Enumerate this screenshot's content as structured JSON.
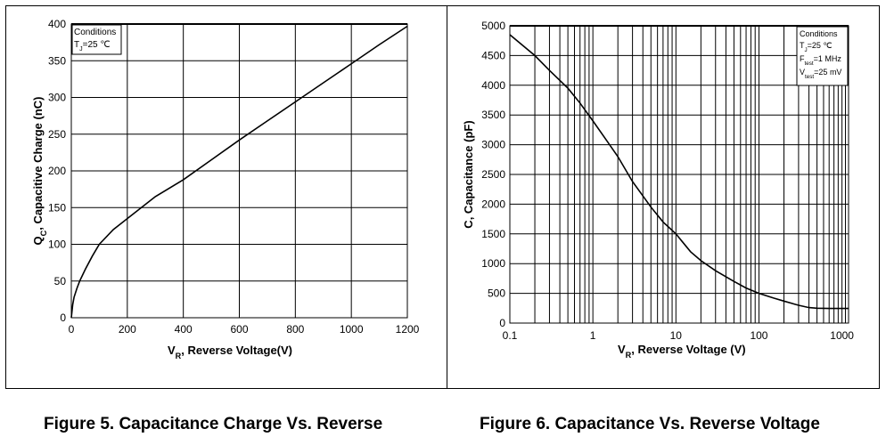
{
  "chart_data": [
    {
      "type": "line",
      "ylabel_main": "Q",
      "ylabel_sub": "C",
      "ylabel_rest": ", Capacitive Charge (nC)",
      "xlabel_main": "V",
      "xlabel_sub": "R",
      "xlabel_rest": ",  Reverse Voltage(V)",
      "x_ticks": [
        "0",
        "200",
        "400",
        "600",
        "800",
        "1000",
        "1200"
      ],
      "y_ticks": [
        "0",
        "50",
        "100",
        "150",
        "200",
        "250",
        "300",
        "350",
        "400"
      ],
      "xlim": [
        0,
        1200
      ],
      "ylim": [
        0,
        400
      ],
      "grid": true,
      "conditions": {
        "title": "Conditions",
        "lines": [
          {
            "main": "T",
            "sub": "J",
            "rest": "=25 ℃"
          }
        ]
      },
      "series": [
        {
          "x": [
            0,
            5,
            10,
            20,
            30,
            50,
            75,
            100,
            150,
            200,
            300,
            400,
            500,
            600,
            700,
            800,
            900,
            1000,
            1100,
            1200
          ],
          "y": [
            0,
            18,
            28,
            40,
            50,
            66,
            84,
            100,
            120,
            135,
            165,
            188,
            215,
            242,
            268,
            294,
            320,
            346,
            372,
            397
          ]
        }
      ],
      "caption": "Figure 5. Capacitance Charge Vs. Reverse"
    },
    {
      "type": "line",
      "ylabel": "C, Capacitance (pF)",
      "xlabel_main": "V",
      "xlabel_sub": "R",
      "xlabel_rest": ", Reverse Voltage (V)",
      "x_scale": "log",
      "x_ticks": [
        "0.1",
        "1",
        "10",
        "100",
        "1000"
      ],
      "y_ticks": [
        "0",
        "500",
        "1000",
        "1500",
        "2000",
        "2500",
        "3000",
        "3500",
        "4000",
        "4500",
        "5000"
      ],
      "xlim": [
        0.1,
        1200
      ],
      "ylim": [
        0,
        5000
      ],
      "grid": true,
      "conditions": {
        "title": "Conditions",
        "lines": [
          {
            "main": "T",
            "sub": "J",
            "rest": "=25 ℃"
          },
          {
            "main": "F",
            "sub": "test",
            "rest": "=1 MHz"
          },
          {
            "main": "V",
            "sub": "test",
            "rest": "=25 mV"
          }
        ]
      },
      "series": [
        {
          "x": [
            0.1,
            0.2,
            0.3,
            0.5,
            0.7,
            1,
            1.5,
            2,
            3,
            5,
            7,
            10,
            15,
            20,
            30,
            50,
            70,
            100,
            150,
            200,
            300,
            400,
            500,
            700,
            1000,
            1200
          ],
          "y": [
            4850,
            4500,
            4250,
            3950,
            3700,
            3400,
            3050,
            2800,
            2380,
            1950,
            1700,
            1500,
            1200,
            1050,
            880,
            700,
            590,
            500,
            420,
            370,
            300,
            260,
            250,
            245,
            245,
            245
          ]
        }
      ],
      "caption": "Figure 6. Capacitance Vs. Reverse Voltage"
    }
  ]
}
